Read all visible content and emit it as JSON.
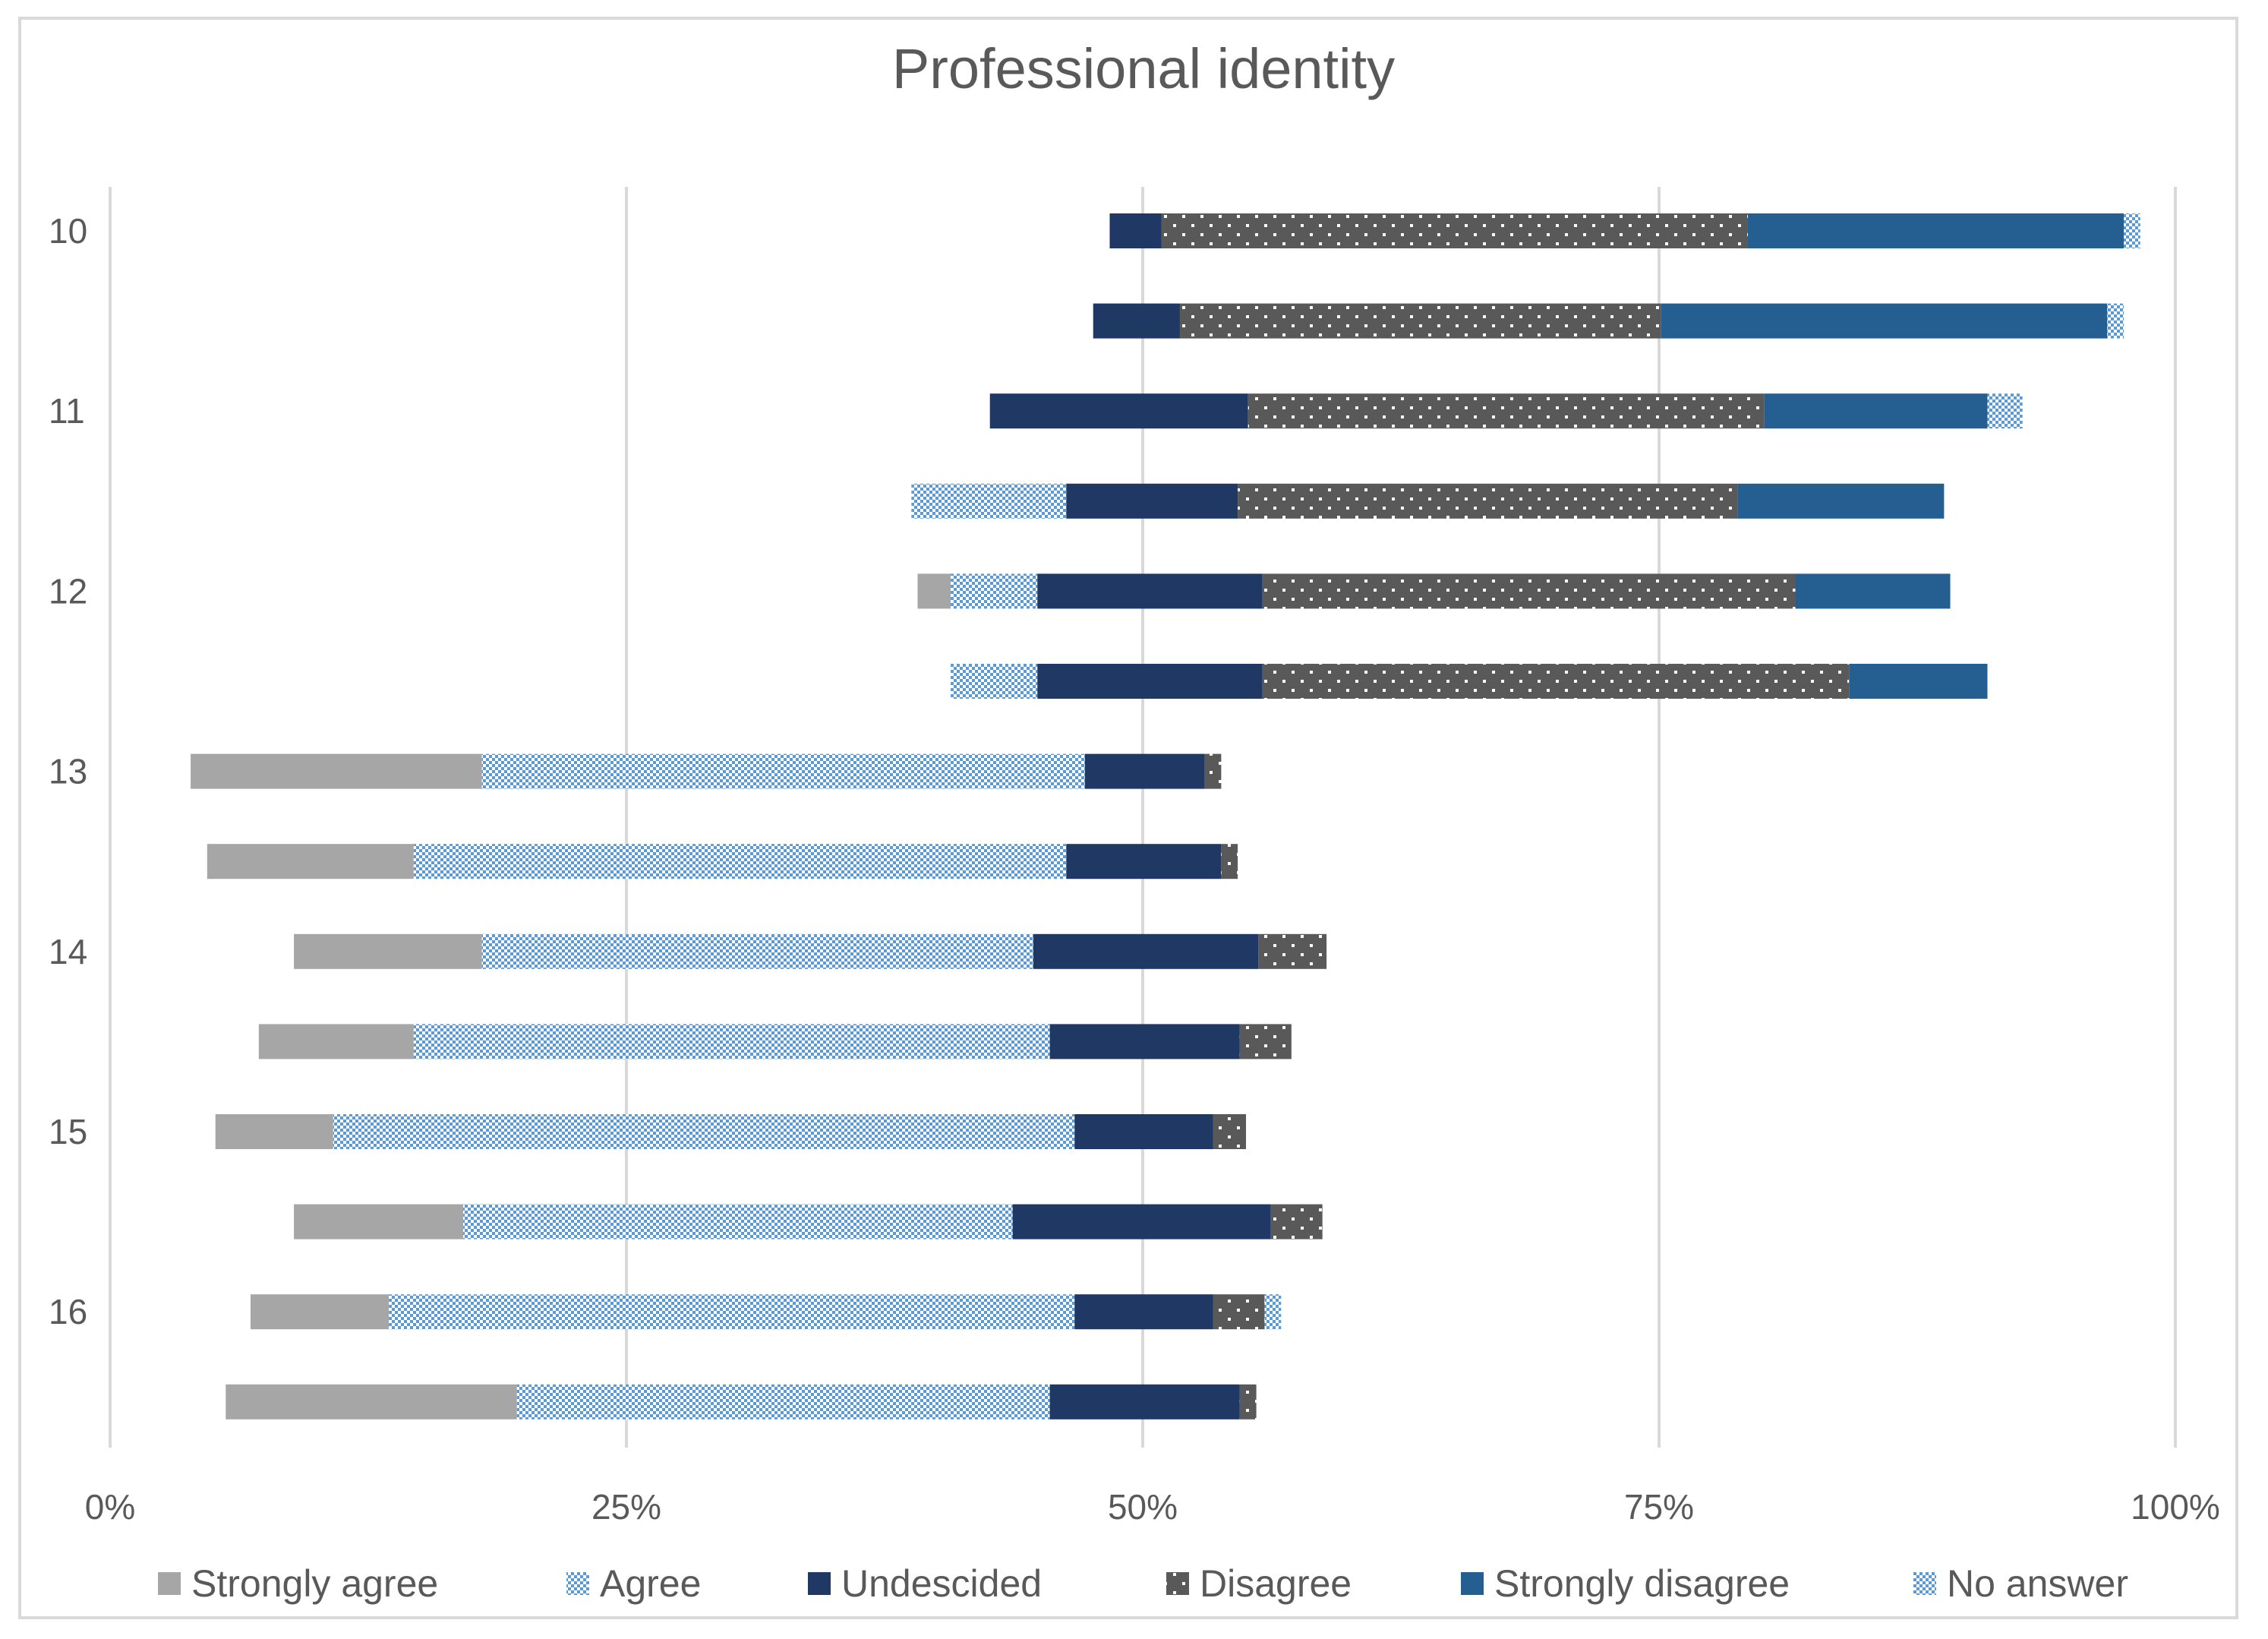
{
  "chart_data": {
    "type": "bar",
    "orientation": "horizontal",
    "stacked": true,
    "title": "Professional identity",
    "xlabel": "",
    "ylabel": "",
    "x_ticks": [
      "0%",
      "25%",
      "50%",
      "75%",
      "100%"
    ],
    "xlim": [
      0,
      100
    ],
    "grid": true,
    "legend_position": "bottom",
    "rows": [
      {
        "label": "10",
        "start": 48.4
      },
      {
        "label": "",
        "start": 47.6
      },
      {
        "label": "11",
        "start": 42.6
      },
      {
        "label": "",
        "start": 38.8
      },
      {
        "label": "12",
        "start": 39.1
      },
      {
        "label": "",
        "start": 40.7
      },
      {
        "label": "13",
        "start": 3.9
      },
      {
        "label": "",
        "start": 4.7
      },
      {
        "label": "14",
        "start": 8.9
      },
      {
        "label": "",
        "start": 7.2
      },
      {
        "label": "15",
        "start": 5.1
      },
      {
        "label": "",
        "start": 8.9
      },
      {
        "label": "16",
        "start": 6.8
      },
      {
        "label": "",
        "start": 5.6
      }
    ],
    "series": [
      {
        "name": "Strongly agree",
        "color": "#a6a6a6",
        "pattern": "solid",
        "values": [
          0,
          0,
          0,
          0,
          1.6,
          0,
          14.1,
          10,
          9.1,
          7.5,
          5.7,
          8.2,
          6.7,
          14.1
        ]
      },
      {
        "name": "Agree",
        "color": "#5b9bd5",
        "pattern": "check",
        "values": [
          0,
          0,
          0,
          7.5,
          4.2,
          4.2,
          29.2,
          31.6,
          26.7,
          30.8,
          35.9,
          26.6,
          33.2,
          25.8
        ]
      },
      {
        "name": "Undescided",
        "color": "#203864",
        "pattern": "solid",
        "values": [
          2.5,
          4.2,
          12.5,
          8.3,
          10.9,
          10.9,
          5.8,
          7.5,
          10.9,
          9.2,
          6.7,
          12.5,
          6.7,
          9.2
        ]
      },
      {
        "name": "Disagree",
        "color": "#595959",
        "pattern": "dots",
        "values": [
          28.4,
          23.3,
          25.0,
          24.2,
          25.8,
          28.4,
          0.8,
          0.8,
          3.3,
          2.5,
          1.6,
          2.5,
          2.5,
          0.8
        ]
      },
      {
        "name": "Strongly disagree",
        "color": "#255e91",
        "pattern": "solid",
        "values": [
          18.2,
          21.6,
          10.8,
          10.0,
          7.5,
          6.7,
          0,
          0,
          0,
          0,
          0,
          0,
          0,
          0
        ]
      },
      {
        "name": "No answer",
        "color": "#5b9bd5",
        "pattern": "check",
        "values": [
          0.8,
          0.8,
          1.7,
          0,
          0,
          0,
          0,
          0,
          0,
          0,
          0,
          0,
          0.8,
          0
        ]
      }
    ]
  }
}
